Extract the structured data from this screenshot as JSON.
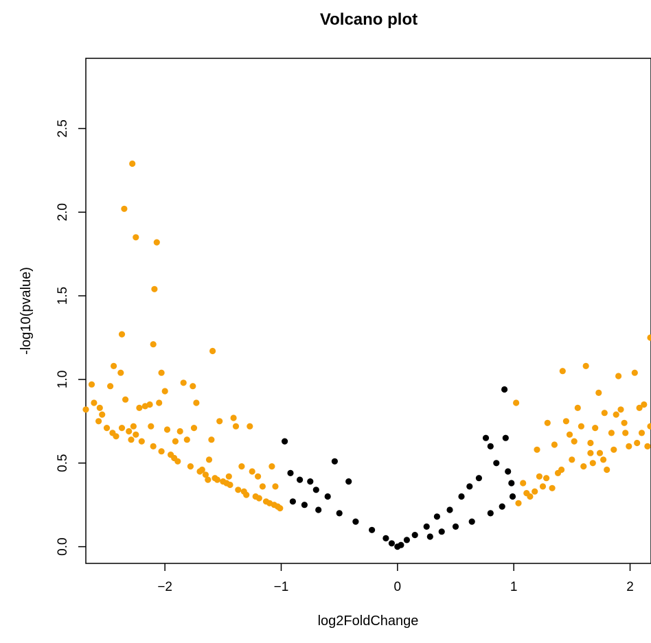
{
  "chart_data": {
    "type": "scatter",
    "title": "Volcano plot",
    "xlabel": "log2FoldChange",
    "ylabel": "-log10(pvalue)",
    "xlim": [
      -2.68,
      2.18
    ],
    "ylim": [
      -0.1,
      2.92
    ],
    "xticks": [
      -2,
      -1,
      0,
      1,
      2
    ],
    "xtick_labels": [
      "−2",
      "−1",
      "0",
      "1",
      "2"
    ],
    "yticks": [
      0.0,
      0.5,
      1.0,
      1.5,
      2.0,
      2.5
    ],
    "ytick_labels": [
      "0.0",
      "0.5",
      "1.0",
      "1.5",
      "2.0",
      "2.5"
    ],
    "grid": false,
    "legend": "none",
    "colors": {
      "significant": "#f5a00a",
      "not_significant": "#000000",
      "frame": "#000000"
    },
    "series": [
      {
        "color": "#f5a00a",
        "points": [
          [
            -2.28,
            2.29
          ],
          [
            -2.35,
            2.02
          ],
          [
            -2.25,
            1.85
          ],
          [
            -2.07,
            1.82
          ],
          [
            -2.09,
            1.54
          ],
          [
            -2.37,
            1.27
          ],
          [
            -2.1,
            1.21
          ],
          [
            -1.59,
            1.17
          ],
          [
            -2.63,
            0.97
          ],
          [
            -2.44,
            1.08
          ],
          [
            -2.03,
            1.04
          ],
          [
            -2.38,
            1.04
          ],
          [
            -2.69,
            0.82
          ],
          [
            -2.61,
            0.86
          ],
          [
            -2.54,
            0.79
          ],
          [
            -2.57,
            0.75
          ],
          [
            -2.5,
            0.71
          ],
          [
            -2.45,
            0.68
          ],
          [
            -2.42,
            0.66
          ],
          [
            -2.37,
            0.71
          ],
          [
            -2.34,
            0.88
          ],
          [
            -2.31,
            0.69
          ],
          [
            -2.27,
            0.72
          ],
          [
            -2.25,
            0.67
          ],
          [
            -2.22,
            0.83
          ],
          [
            -2.2,
            0.63
          ],
          [
            -2.17,
            0.84
          ],
          [
            -2.13,
            0.85
          ],
          [
            -2.1,
            0.6
          ],
          [
            -2.05,
            0.86
          ],
          [
            -2.03,
            0.57
          ],
          [
            -2.0,
            0.93
          ],
          [
            -1.98,
            0.7
          ],
          [
            -1.95,
            0.55
          ],
          [
            -1.92,
            0.53
          ],
          [
            -1.89,
            0.51
          ],
          [
            -1.87,
            0.69
          ],
          [
            -1.84,
            0.98
          ],
          [
            -1.81,
            0.64
          ],
          [
            -1.76,
            0.96
          ],
          [
            -1.78,
            0.48
          ],
          [
            -1.75,
            0.71
          ],
          [
            -1.73,
            0.86
          ],
          [
            -1.7,
            0.45
          ],
          [
            -1.68,
            0.46
          ],
          [
            -1.65,
            0.43
          ],
          [
            -1.62,
            0.52
          ],
          [
            -1.6,
            0.64
          ],
          [
            -1.57,
            0.41
          ],
          [
            -1.55,
            0.4
          ],
          [
            -1.53,
            0.75
          ],
          [
            -1.5,
            0.39
          ],
          [
            -1.47,
            0.38
          ],
          [
            -1.44,
            0.37
          ],
          [
            -1.41,
            0.77
          ],
          [
            -1.39,
            0.72
          ],
          [
            -1.37,
            0.34
          ],
          [
            -1.34,
            0.48
          ],
          [
            -1.32,
            0.33
          ],
          [
            -1.3,
            0.31
          ],
          [
            -1.27,
            0.72
          ],
          [
            -1.25,
            0.45
          ],
          [
            -1.22,
            0.3
          ],
          [
            -1.19,
            0.29
          ],
          [
            -1.16,
            0.36
          ],
          [
            -1.13,
            0.27
          ],
          [
            -1.1,
            0.26
          ],
          [
            -1.08,
            0.48
          ],
          [
            -1.06,
            0.25
          ],
          [
            -1.03,
            0.24
          ],
          [
            -1.01,
            0.23
          ],
          [
            -2.47,
            0.96
          ],
          [
            -2.29,
            0.64
          ],
          [
            -2.12,
            0.72
          ],
          [
            -1.91,
            0.63
          ],
          [
            -1.63,
            0.4
          ],
          [
            -1.45,
            0.42
          ],
          [
            -1.2,
            0.42
          ],
          [
            -1.05,
            0.36
          ],
          [
            -2.56,
            0.83
          ],
          [
            1.02,
            0.86
          ],
          [
            1.08,
            0.38
          ],
          [
            1.14,
            0.3
          ],
          [
            1.2,
            0.58
          ],
          [
            1.25,
            0.36
          ],
          [
            1.29,
            0.74
          ],
          [
            1.35,
            0.61
          ],
          [
            1.41,
            0.46
          ],
          [
            1.42,
            1.05
          ],
          [
            1.48,
            0.67
          ],
          [
            1.55,
            0.83
          ],
          [
            1.6,
            0.48
          ],
          [
            1.62,
            1.08
          ],
          [
            1.66,
            0.56
          ],
          [
            1.7,
            0.71
          ],
          [
            1.73,
            0.92
          ],
          [
            1.77,
            0.52
          ],
          [
            1.8,
            0.46
          ],
          [
            1.84,
            0.68
          ],
          [
            1.88,
            0.79
          ],
          [
            1.9,
            1.02
          ],
          [
            1.95,
            0.74
          ],
          [
            1.99,
            0.6
          ],
          [
            2.04,
            1.04
          ],
          [
            2.08,
            0.83
          ],
          [
            2.12,
            0.85
          ],
          [
            2.15,
            0.6
          ],
          [
            2.18,
            1.25
          ],
          [
            2.18,
            0.72
          ],
          [
            1.04,
            0.26
          ],
          [
            1.11,
            0.32
          ],
          [
            1.18,
            0.33
          ],
          [
            1.28,
            0.41
          ],
          [
            1.38,
            0.44
          ],
          [
            1.5,
            0.52
          ],
          [
            1.68,
            0.5
          ],
          [
            1.86,
            0.58
          ],
          [
            1.96,
            0.68
          ],
          [
            2.06,
            0.62
          ],
          [
            1.33,
            0.35
          ],
          [
            1.58,
            0.72
          ],
          [
            1.78,
            0.8
          ],
          [
            1.45,
            0.75
          ],
          [
            1.22,
            0.42
          ],
          [
            1.66,
            0.62
          ],
          [
            1.92,
            0.82
          ],
          [
            2.1,
            0.68
          ],
          [
            1.52,
            0.63
          ],
          [
            1.74,
            0.56
          ]
        ]
      },
      {
        "color": "#000000",
        "points": [
          [
            -0.97,
            0.63
          ],
          [
            -0.54,
            0.51
          ],
          [
            -0.92,
            0.44
          ],
          [
            -0.84,
            0.4
          ],
          [
            -0.75,
            0.39
          ],
          [
            -0.42,
            0.39
          ],
          [
            -0.7,
            0.34
          ],
          [
            -0.6,
            0.3
          ],
          [
            -0.9,
            0.27
          ],
          [
            -0.8,
            0.25
          ],
          [
            -0.68,
            0.22
          ],
          [
            -0.5,
            0.2
          ],
          [
            -0.36,
            0.15
          ],
          [
            -0.22,
            0.1
          ],
          [
            -0.1,
            0.05
          ],
          [
            -0.05,
            0.02
          ],
          [
            0.0,
            0.0
          ],
          [
            0.03,
            0.01
          ],
          [
            0.08,
            0.04
          ],
          [
            0.15,
            0.07
          ],
          [
            0.25,
            0.12
          ],
          [
            0.34,
            0.18
          ],
          [
            0.45,
            0.22
          ],
          [
            0.55,
            0.3
          ],
          [
            0.62,
            0.36
          ],
          [
            0.7,
            0.41
          ],
          [
            0.76,
            0.65
          ],
          [
            0.8,
            0.6
          ],
          [
            0.85,
            0.5
          ],
          [
            0.92,
            0.94
          ],
          [
            0.93,
            0.65
          ],
          [
            0.95,
            0.45
          ],
          [
            0.98,
            0.38
          ],
          [
            0.99,
            0.3
          ],
          [
            0.9,
            0.24
          ],
          [
            0.8,
            0.2
          ],
          [
            0.64,
            0.15
          ],
          [
            0.5,
            0.12
          ],
          [
            0.38,
            0.09
          ],
          [
            0.28,
            0.06
          ]
        ]
      }
    ]
  }
}
